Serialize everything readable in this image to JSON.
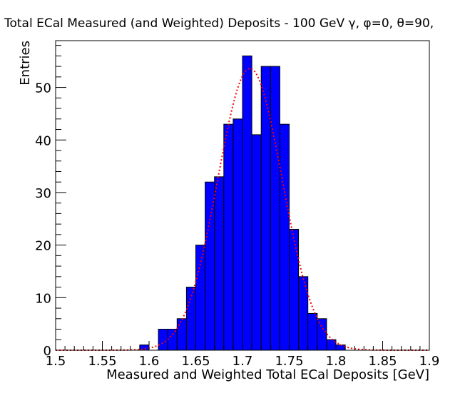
{
  "chart_data": {
    "type": "bar",
    "title": "Total ECal Measured (and Weighted) Deposits - 100 GeV γ, φ=0, θ=90,",
    "xlabel": "Measured and Weighted Total ECal Deposits [GeV]",
    "ylabel": "Entries",
    "xlim": [
      1.5,
      1.9
    ],
    "ylim": [
      0,
      58.9
    ],
    "bin_width": 0.01,
    "bin_edges_start": 1.5,
    "values": [
      0,
      0,
      0,
      0,
      0,
      0,
      0,
      0,
      0,
      1,
      0,
      4,
      4,
      6,
      12,
      20,
      32,
      33,
      43,
      44,
      56,
      41,
      54,
      54,
      43,
      23,
      14,
      7,
      6,
      2,
      1,
      0,
      0,
      0,
      0,
      0,
      0,
      0,
      0,
      0
    ],
    "x_ticks": [
      "1.5",
      "1.55",
      "1.6",
      "1.65",
      "1.7",
      "1.75",
      "1.8",
      "1.85",
      "1.9"
    ],
    "y_ticks": [
      "0",
      "10",
      "20",
      "30",
      "40",
      "50"
    ],
    "fit": {
      "type": "gaussian",
      "amplitude": 53.6,
      "mean": 1.708,
      "sigma": 0.0345,
      "color": "#ff0000",
      "style": "dotted"
    },
    "bar_color": "#0000ff",
    "grid": false,
    "legend": "none"
  }
}
